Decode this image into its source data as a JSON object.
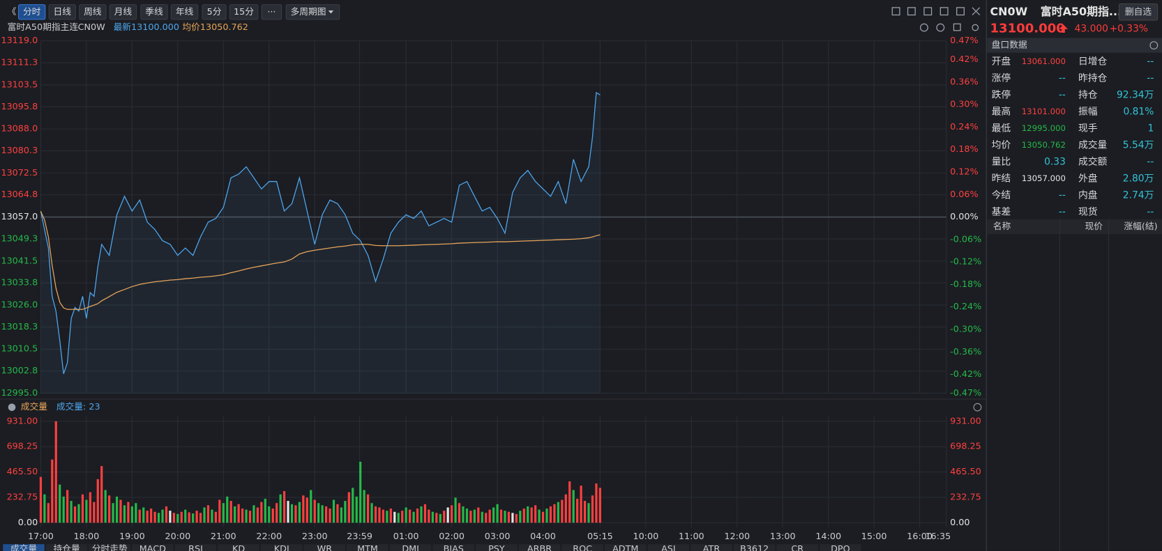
{
  "toolbar": {
    "buttons": [
      "分时",
      "日线",
      "周线",
      "月线",
      "季线",
      "年线",
      "5分",
      "15分",
      "···",
      "多周期图"
    ]
  },
  "header": {
    "name": "富时A50期指主连",
    "code": "CN0W",
    "latest": "最新13100.000",
    "avg": "均价13050.762"
  },
  "chart_data": [
    {
      "type": "line",
      "xlim": [
        0,
        1190
      ],
      "ylim": [
        12995,
        13119
      ],
      "y2lim": [
        -0.47,
        0.47
      ],
      "grid": true,
      "yticks": [
        {
          "value": 13119,
          "label": "13119.0"
        },
        13111.3,
        13103.5,
        13095.8,
        {
          "value": 13088,
          "label": "13088.0"
        },
        13080.3,
        13072.5,
        13064.8,
        {
          "value": 13057,
          "label": "13057.0"
        },
        13049.3,
        13041.5,
        13033.8,
        {
          "value": 13026,
          "label": "13026.0"
        },
        13018.3,
        13010.5,
        13002.8,
        {
          "value": 12995,
          "label": "12995.0"
        }
      ],
      "y2ticks": [
        {
          "value": 0.47,
          "label": "0.47%"
        },
        {
          "value": 0.42,
          "label": "0.42%"
        },
        {
          "value": 0.36,
          "label": "0.36%"
        },
        {
          "value": 0.3,
          "label": "0.30%"
        },
        {
          "value": 0.24,
          "label": "0.24%"
        },
        {
          "value": 0.18,
          "label": "0.18%"
        },
        {
          "value": 0.12,
          "label": "0.12%"
        },
        {
          "value": 0.06,
          "label": "0.06%"
        },
        {
          "value": 0,
          "label": "0.00%"
        },
        {
          "value": -0.06,
          "label": "-0.06%"
        },
        {
          "value": -0.12,
          "label": "-0.12%"
        },
        {
          "value": -0.18,
          "label": "-0.18%"
        },
        {
          "value": -0.24,
          "label": "-0.24%"
        },
        {
          "value": -0.3,
          "label": "-0.30%"
        },
        {
          "value": -0.36,
          "label": "-0.36%"
        },
        {
          "value": -0.42,
          "label": "-0.42%"
        },
        {
          "value": -0.47,
          "label": "-0.47%"
        }
      ],
      "x": [
        0,
        5,
        10,
        15,
        20,
        25,
        30,
        35,
        40,
        45,
        50,
        55,
        60,
        65,
        70,
        75,
        80,
        90,
        100,
        110,
        120,
        130,
        140,
        150,
        160,
        170,
        180,
        190,
        200,
        210,
        220,
        230,
        240,
        250,
        260,
        270,
        280,
        290,
        300,
        310,
        320,
        330,
        340,
        350,
        360,
        370,
        380,
        390,
        400,
        410,
        420,
        430,
        440,
        450,
        460,
        470,
        480,
        490,
        500,
        510,
        520,
        530,
        540,
        550,
        560,
        570,
        580,
        590,
        600,
        610,
        620,
        630,
        640,
        650,
        660,
        670,
        680,
        690,
        700,
        710,
        720,
        725,
        730,
        735
      ],
      "series": [
        {
          "color": "#4ea6ee",
          "values": [
            13059.1,
            13052.6,
            13046.1,
            13029.1,
            13023.9,
            13013.5,
            13001.8,
            13005.7,
            13021.3,
            13025.2,
            13023.9,
            13029.1,
            13021.3,
            13030.4,
            13029.1,
            13039.5,
            13047.4,
            13043.5,
            13057.8,
            13064.3,
            13059.1,
            13063,
            13055.2,
            13052.6,
            13048.7,
            13047.4,
            13043.5,
            13046.1,
            13043.5,
            13050,
            13055.2,
            13056.5,
            13060.4,
            13070.8,
            13072.1,
            13074.7,
            13070.8,
            13066.9,
            13069.5,
            13069.5,
            13059.1,
            13061.7,
            13070.8,
            13059.1,
            13047.4,
            13057.8,
            13063,
            13061.7,
            13057.8,
            13051.3,
            13048.7,
            13043.5,
            13034.3,
            13042.2,
            13051.3,
            13055.2,
            13057.8,
            13056.5,
            13059.1,
            13053.9,
            13055.2,
            13056.5,
            13055.2,
            13068.2,
            13069.5,
            13064.3,
            13059.1,
            13060.4,
            13056.5,
            13051.3,
            13065.6,
            13070.8,
            13073.4,
            13069.5,
            13066.9,
            13064.3,
            13069.5,
            13061.7,
            13077.3,
            13069.5,
            13074.7,
            13085.1,
            13100.8,
            13100
          ]
        },
        {
          "color": "#e8a55a",
          "values": [
            13059,
            13056,
            13050,
            13040,
            13032,
            13027,
            13025,
            13024.5,
            13024.5,
            13024.5,
            13024.5,
            13024.5,
            13025,
            13025.5,
            13026,
            13026.5,
            13027.5,
            13029,
            13030.5,
            13031.5,
            13032.5,
            13033.3,
            13033.8,
            13034.2,
            13034.5,
            13034.8,
            13035,
            13035.3,
            13035.5,
            13035.8,
            13036,
            13036.3,
            13036.7,
            13037.4,
            13038,
            13038.7,
            13039.3,
            13039.8,
            13040.3,
            13040.8,
            13041.2,
            13042.2,
            13044,
            13044.8,
            13045.3,
            13045.7,
            13046.1,
            13046.5,
            13046.8,
            13047.2,
            13047.4,
            13047.4,
            13047,
            13046.9,
            13046.9,
            13046.9,
            13047,
            13047.1,
            13047.2,
            13047.3,
            13047.4,
            13047.5,
            13047.6,
            13047.8,
            13047.9,
            13048,
            13048.1,
            13048.2,
            13048.3,
            13048.3,
            13048.4,
            13048.5,
            13048.6,
            13048.7,
            13048.8,
            13048.9,
            13049,
            13049.1,
            13049.2,
            13049.4,
            13049.7,
            13050,
            13050.4,
            13050.762
          ]
        }
      ]
    },
    {
      "type": "bar",
      "title": "成交量",
      "subtitle": "成交量: 23",
      "xlim": [
        0,
        1190
      ],
      "ylim": [
        0,
        931
      ],
      "grid": true,
      "yticks": [
        {
          "value": 931,
          "label": "931.00"
        },
        698.25,
        465.5,
        232.75,
        {
          "value": 0,
          "label": "0.00"
        }
      ],
      "ytick_labels": [
        "931.00",
        "698.25",
        "465.50",
        "232.75",
        "0.00"
      ],
      "xticks": [
        {
          "value": 0,
          "label": "17:00"
        },
        {
          "value": 60,
          "label": "18:00"
        },
        {
          "value": 120,
          "label": "19:00"
        },
        {
          "value": 180,
          "label": "20:00"
        },
        {
          "value": 240,
          "label": "21:00"
        },
        {
          "value": 300,
          "label": "22:00"
        },
        {
          "value": 360,
          "label": "23:00"
        },
        {
          "value": 419,
          "label": "23:59"
        },
        {
          "value": 480,
          "label": "01:00"
        },
        {
          "value": 540,
          "label": "02:00"
        },
        {
          "value": 600,
          "label": "03:00"
        },
        {
          "value": 660,
          "label": "04:00"
        },
        {
          "value": 735,
          "label": "05:15"
        },
        {
          "value": 795,
          "label": "10:00"
        },
        {
          "value": 855,
          "label": "11:00"
        },
        {
          "value": 915,
          "label": "12:00"
        },
        {
          "value": 975,
          "label": "13:00"
        },
        {
          "value": 1035,
          "label": "14:00"
        },
        {
          "value": 1095,
          "label": "15:00"
        },
        {
          "value": 1155,
          "label": "16:00"
        },
        {
          "value": 1190,
          "label": "16:35"
        }
      ],
      "x": [
        0,
        5,
        10,
        15,
        20,
        25,
        30,
        35,
        40,
        45,
        50,
        55,
        60,
        65,
        70,
        75,
        80,
        85,
        90,
        95,
        100,
        105,
        110,
        115,
        120,
        125,
        130,
        135,
        140,
        145,
        150,
        155,
        160,
        165,
        170,
        175,
        180,
        185,
        190,
        195,
        200,
        205,
        210,
        215,
        220,
        225,
        230,
        235,
        240,
        245,
        250,
        255,
        260,
        265,
        270,
        275,
        280,
        285,
        290,
        295,
        300,
        305,
        310,
        315,
        320,
        325,
        330,
        335,
        340,
        345,
        350,
        355,
        360,
        365,
        370,
        375,
        380,
        385,
        390,
        395,
        400,
        405,
        410,
        415,
        420,
        425,
        430,
        435,
        440,
        445,
        450,
        455,
        460,
        465,
        470,
        475,
        480,
        485,
        490,
        495,
        500,
        505,
        510,
        515,
        520,
        525,
        530,
        535,
        540,
        545,
        550,
        555,
        560,
        565,
        570,
        575,
        580,
        585,
        590,
        595,
        600,
        605,
        610,
        615,
        620,
        625,
        630,
        635,
        640,
        645,
        650,
        655,
        660,
        665,
        670,
        675,
        680,
        685,
        690,
        695,
        700,
        705,
        710,
        715,
        720,
        725,
        730,
        735
      ],
      "values": [
        420,
        260,
        180,
        580,
        931,
        350,
        240,
        300,
        200,
        150,
        170,
        260,
        210,
        280,
        190,
        400,
        520,
        300,
        250,
        180,
        240,
        210,
        160,
        190,
        150,
        180,
        120,
        140,
        110,
        130,
        100,
        90,
        120,
        150,
        110,
        90,
        80,
        100,
        120,
        95,
        85,
        110,
        90,
        140,
        160,
        120,
        100,
        210,
        180,
        240,
        200,
        150,
        170,
        130,
        120,
        110,
        160,
        140,
        190,
        220,
        150,
        130,
        180,
        260,
        290,
        200,
        170,
        160,
        190,
        250,
        230,
        300,
        210,
        180,
        160,
        150,
        130,
        210,
        170,
        140,
        200,
        280,
        320,
        240,
        560,
        300,
        260,
        180,
        150,
        140,
        120,
        110,
        130,
        100,
        90,
        110,
        140,
        120,
        100,
        130,
        150,
        170,
        120,
        100,
        90,
        80,
        110,
        140,
        160,
        230,
        180,
        150,
        130,
        110,
        120,
        140,
        100,
        90,
        120,
        140,
        170,
        120,
        110,
        100,
        90,
        80,
        110,
        130,
        150,
        140,
        160,
        120,
        100,
        130,
        150,
        170,
        190,
        210,
        260,
        380,
        300,
        220,
        340,
        200,
        180,
        250,
        360,
        320
      ],
      "colors": [
        "#ff4040",
        "#25b94a",
        "#ff4040",
        "#ff4040",
        "#ff4040",
        "#25b94a",
        "#25b94a",
        "#ff4040",
        "#25b94a",
        "#ff4040",
        "#25b94a",
        "#ff4040",
        "#25b94a",
        "#ff4040",
        "#ff4040",
        "#ff4040",
        "#ff4040",
        "#25b94a",
        "#ff4040",
        "#25b94a",
        "#25b94a",
        "#ff4040",
        "#25b94a",
        "#ff4040",
        "#25b94a",
        "#25b94a",
        "#ff4040",
        "#25b94a",
        "#ff4040",
        "#ff4040",
        "#ff4040",
        "#25b94a",
        "#25b94a",
        "#ff4040",
        "#e6e6e6",
        "#ff4040",
        "#25b94a",
        "#ff4040",
        "#25b94a",
        "#ff4040",
        "#25b94a",
        "#ff4040",
        "#ff4040",
        "#25b94a",
        "#ff4040",
        "#25b94a",
        "#ff4040",
        "#ff4040",
        "#25b94a",
        "#25b94a",
        "#ff4040",
        "#25b94a",
        "#ff4040",
        "#ff4040",
        "#25b94a",
        "#ff4040",
        "#25b94a",
        "#ff4040",
        "#ff4040",
        "#25b94a",
        "#25b94a",
        "#ff4040",
        "#ff4040",
        "#25b94a",
        "#ff4040",
        "#e6e6e6",
        "#25b94a",
        "#ff4040",
        "#25b94a",
        "#ff4040",
        "#ff4040",
        "#25b94a",
        "#ff4040",
        "#25b94a",
        "#25b94a",
        "#ff4040",
        "#ff4040",
        "#25b94a",
        "#ff4040",
        "#25b94a",
        "#25b94a",
        "#ff4040",
        "#25b94a",
        "#25b94a",
        "#25b94a",
        "#25b94a",
        "#ff4040",
        "#25b94a",
        "#ff4040",
        "#ff4040",
        "#ff4040",
        "#25b94a",
        "#ff4040",
        "#e6e6e6",
        "#25b94a",
        "#ff4040",
        "#25b94a",
        "#ff4040",
        "#25b94a",
        "#ff4040",
        "#25b94a",
        "#ff4040",
        "#ff4040",
        "#25b94a",
        "#ff4040",
        "#25b94a",
        "#ff4040",
        "#e6e6e6",
        "#ff4040",
        "#25b94a",
        "#ff4040",
        "#25b94a",
        "#25b94a",
        "#ff4040",
        "#25b94a",
        "#ff4040",
        "#25b94a",
        "#ff4040",
        "#ff4040",
        "#25b94a",
        "#25b94a",
        "#ff4040",
        "#25b94a",
        "#ff4040",
        "#e6e6e6",
        "#ff4040",
        "#25b94a",
        "#ff4040",
        "#25b94a",
        "#ff4040",
        "#ff4040",
        "#25b94a",
        "#ff4040",
        "#25b94a",
        "#ff4040",
        "#ff4040",
        "#25b94a",
        "#ff4040",
        "#ff4040",
        "#ff4040",
        "#25b94a",
        "#ff4040",
        "#ff4040",
        "#ff4040",
        "#25b94a",
        "#ff4040",
        "#ff4040",
        "#ff4040"
      ]
    }
  ],
  "bottom_tabs": [
    "成交量",
    "持仓量",
    "分时走势",
    "MACD",
    "RSI",
    "KD",
    "KDJ",
    "WR",
    "MTM",
    "DMI",
    "BIAS",
    "PSY",
    "ARBR",
    "ROC",
    "ADTM",
    "ASI",
    "ATR",
    "B3612",
    "CR",
    "DPO"
  ],
  "quote": {
    "code": "CN0W",
    "name": "富时A50期指...",
    "button": "删自选",
    "price": "13100.000",
    "change": "43.000",
    "pct": "+0.33%"
  },
  "panel": {
    "title": "盘口数据",
    "rows": [
      [
        "开盘",
        "13061.000",
        "日增仓",
        "--"
      ],
      [
        "涨停",
        "--",
        "昨持仓",
        "--"
      ],
      [
        "跌停",
        "--",
        "持仓",
        "92.34万"
      ],
      [
        "最高",
        "13101.000",
        "振幅",
        "0.81%"
      ],
      [
        "最低",
        "12995.000",
        "现手",
        "1"
      ],
      [
        "均价",
        "13050.762",
        "成交量",
        "5.54万"
      ],
      [
        "量比",
        "0.33",
        "成交额",
        "--"
      ],
      [
        "昨结",
        "13057.000",
        "外盘",
        "2.80万"
      ],
      [
        "今结",
        "--",
        "内盘",
        "2.74万"
      ],
      [
        "基差",
        "--",
        "现货",
        "--"
      ]
    ],
    "list_header": [
      "名称",
      "现价",
      "涨幅(结)"
    ]
  }
}
